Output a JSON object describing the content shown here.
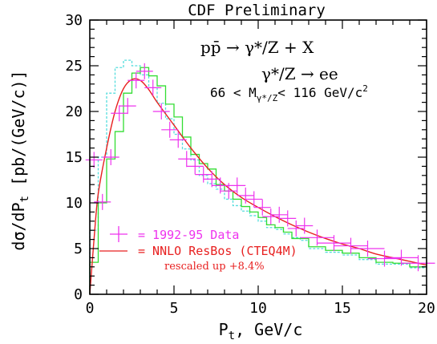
{
  "chart_data": {
    "type": "line",
    "title": "CDF Preliminary",
    "xlabel": "P",
    "xlabel_sub": "t",
    "xlabel_rest": ", GeV/c",
    "ylabel_pre": "dσ/dP",
    "ylabel_sub": "t",
    "ylabel_post": " [pb/(GeV/c)]",
    "xlim": [
      0,
      20
    ],
    "ylim": [
      0,
      30
    ],
    "x_ticks": [
      0,
      5,
      10,
      15,
      20
    ],
    "y_ticks": [
      0,
      5,
      10,
      15,
      20,
      25,
      30
    ],
    "annotations": {
      "process": "pp̄ → γ*/Z + X",
      "decay": "γ*/Z → ee",
      "mass_low": "66 < M",
      "mass_sub": "γ*/Z",
      "mass_high": "< 116 GeV/c",
      "mass_sup": "2"
    },
    "legend": {
      "data_label": "= 1992-95 Data",
      "theory_label": "= NNLO ResBos (CTEQ4M)",
      "theory_note": "rescaled up +8.4%"
    },
    "colors": {
      "data": "#ee33ee",
      "theory": "#e82020",
      "green_histogram": "#33dd33",
      "cyan_histogram": "#55dddd",
      "axes": "#000000"
    },
    "series": [
      {
        "name": "= 1992-95 Data",
        "style": "crosses",
        "x": [
          0.25,
          0.75,
          1.25,
          1.75,
          2.25,
          2.75,
          3.25,
          3.75,
          4.25,
          4.75,
          5.25,
          5.75,
          6.25,
          6.75,
          7.25,
          7.75,
          8.25,
          8.75,
          9.25,
          9.75,
          10.25,
          10.75,
          11.25,
          11.75,
          12.25,
          12.75,
          13.5,
          14.5,
          15.5,
          16.5,
          17.5,
          18.5,
          19.5
        ],
        "y": [
          14.7,
          10.1,
          15.0,
          19.8,
          20.6,
          23.4,
          24.4,
          22.6,
          20.0,
          18.0,
          16.9,
          14.8,
          14.0,
          13.1,
          12.6,
          11.9,
          11.3,
          11.9,
          10.8,
          10.4,
          9.5,
          8.5,
          8.7,
          8.3,
          7.2,
          7.5,
          6.2,
          5.6,
          5.3,
          5.0,
          3.9,
          4.0,
          3.4
        ]
      },
      {
        "name": "= NNLO ResBos (CTEQ4M)",
        "style": "curve",
        "x": [
          0.0,
          0.25,
          0.5,
          1.0,
          1.5,
          2.0,
          2.5,
          3.0,
          3.5,
          4.0,
          5.0,
          6.0,
          7.0,
          8.0,
          9.0,
          10.0,
          11.0,
          12.0,
          13.0,
          14.0,
          15.0,
          16.0,
          17.0,
          18.0,
          19.0,
          20.0
        ],
        "y": [
          0.0,
          6.0,
          11.0,
          16.0,
          20.0,
          22.5,
          23.5,
          23.4,
          22.4,
          21.0,
          18.5,
          16.0,
          13.8,
          12.0,
          10.6,
          9.5,
          8.5,
          7.6,
          6.8,
          6.1,
          5.5,
          5.0,
          4.4,
          4.0,
          3.6,
          3.2
        ]
      },
      {
        "name": "",
        "style": "histogram",
        "role": "green_histogram",
        "edges": [
          0.0,
          0.5,
          1.0,
          1.5,
          2.0,
          2.5,
          3.0,
          3.5,
          4.0,
          4.5,
          5.0,
          5.5,
          6.0,
          6.5,
          7.0,
          7.5,
          8.0,
          8.5,
          9.0,
          9.5,
          10.0,
          10.5,
          11.0,
          11.5,
          12.0,
          12.5,
          13.0,
          14.0,
          15.0,
          16.0,
          17.0,
          18.0,
          19.0,
          20.0
        ],
        "values": [
          3.5,
          10.0,
          14.8,
          17.8,
          22.0,
          24.2,
          24.8,
          23.9,
          22.8,
          20.8,
          19.4,
          17.2,
          15.3,
          14.3,
          13.7,
          12.0,
          11.3,
          10.4,
          9.6,
          9.0,
          8.4,
          7.6,
          7.3,
          6.8,
          6.1,
          6.1,
          5.2,
          4.8,
          4.5,
          4.0,
          3.5,
          3.4,
          3.0
        ]
      },
      {
        "name": "",
        "style": "histogram-dashed",
        "role": "cyan_histogram",
        "edges": [
          0.0,
          0.5,
          1.0,
          1.5,
          2.0,
          2.5,
          3.0,
          3.5,
          4.0,
          4.5,
          5.0,
          5.5,
          6.0,
          6.5,
          7.0,
          7.5,
          8.0,
          8.5,
          9.0,
          9.5,
          10.0,
          10.5,
          11.0,
          11.5,
          12.0,
          12.5,
          13.0,
          14.0,
          15.0,
          16.0,
          17.0,
          18.0,
          19.0,
          20.0
        ],
        "values": [
          7.0,
          15.0,
          22.0,
          24.8,
          25.6,
          25.0,
          24.0,
          22.6,
          20.9,
          19.2,
          17.5,
          15.9,
          14.7,
          13.0,
          12.1,
          11.5,
          10.4,
          9.7,
          9.1,
          8.6,
          8.0,
          7.3,
          7.1,
          6.6,
          6.2,
          5.9,
          5.0,
          4.6,
          4.3,
          3.8,
          3.3,
          3.3,
          2.9
        ]
      }
    ]
  }
}
